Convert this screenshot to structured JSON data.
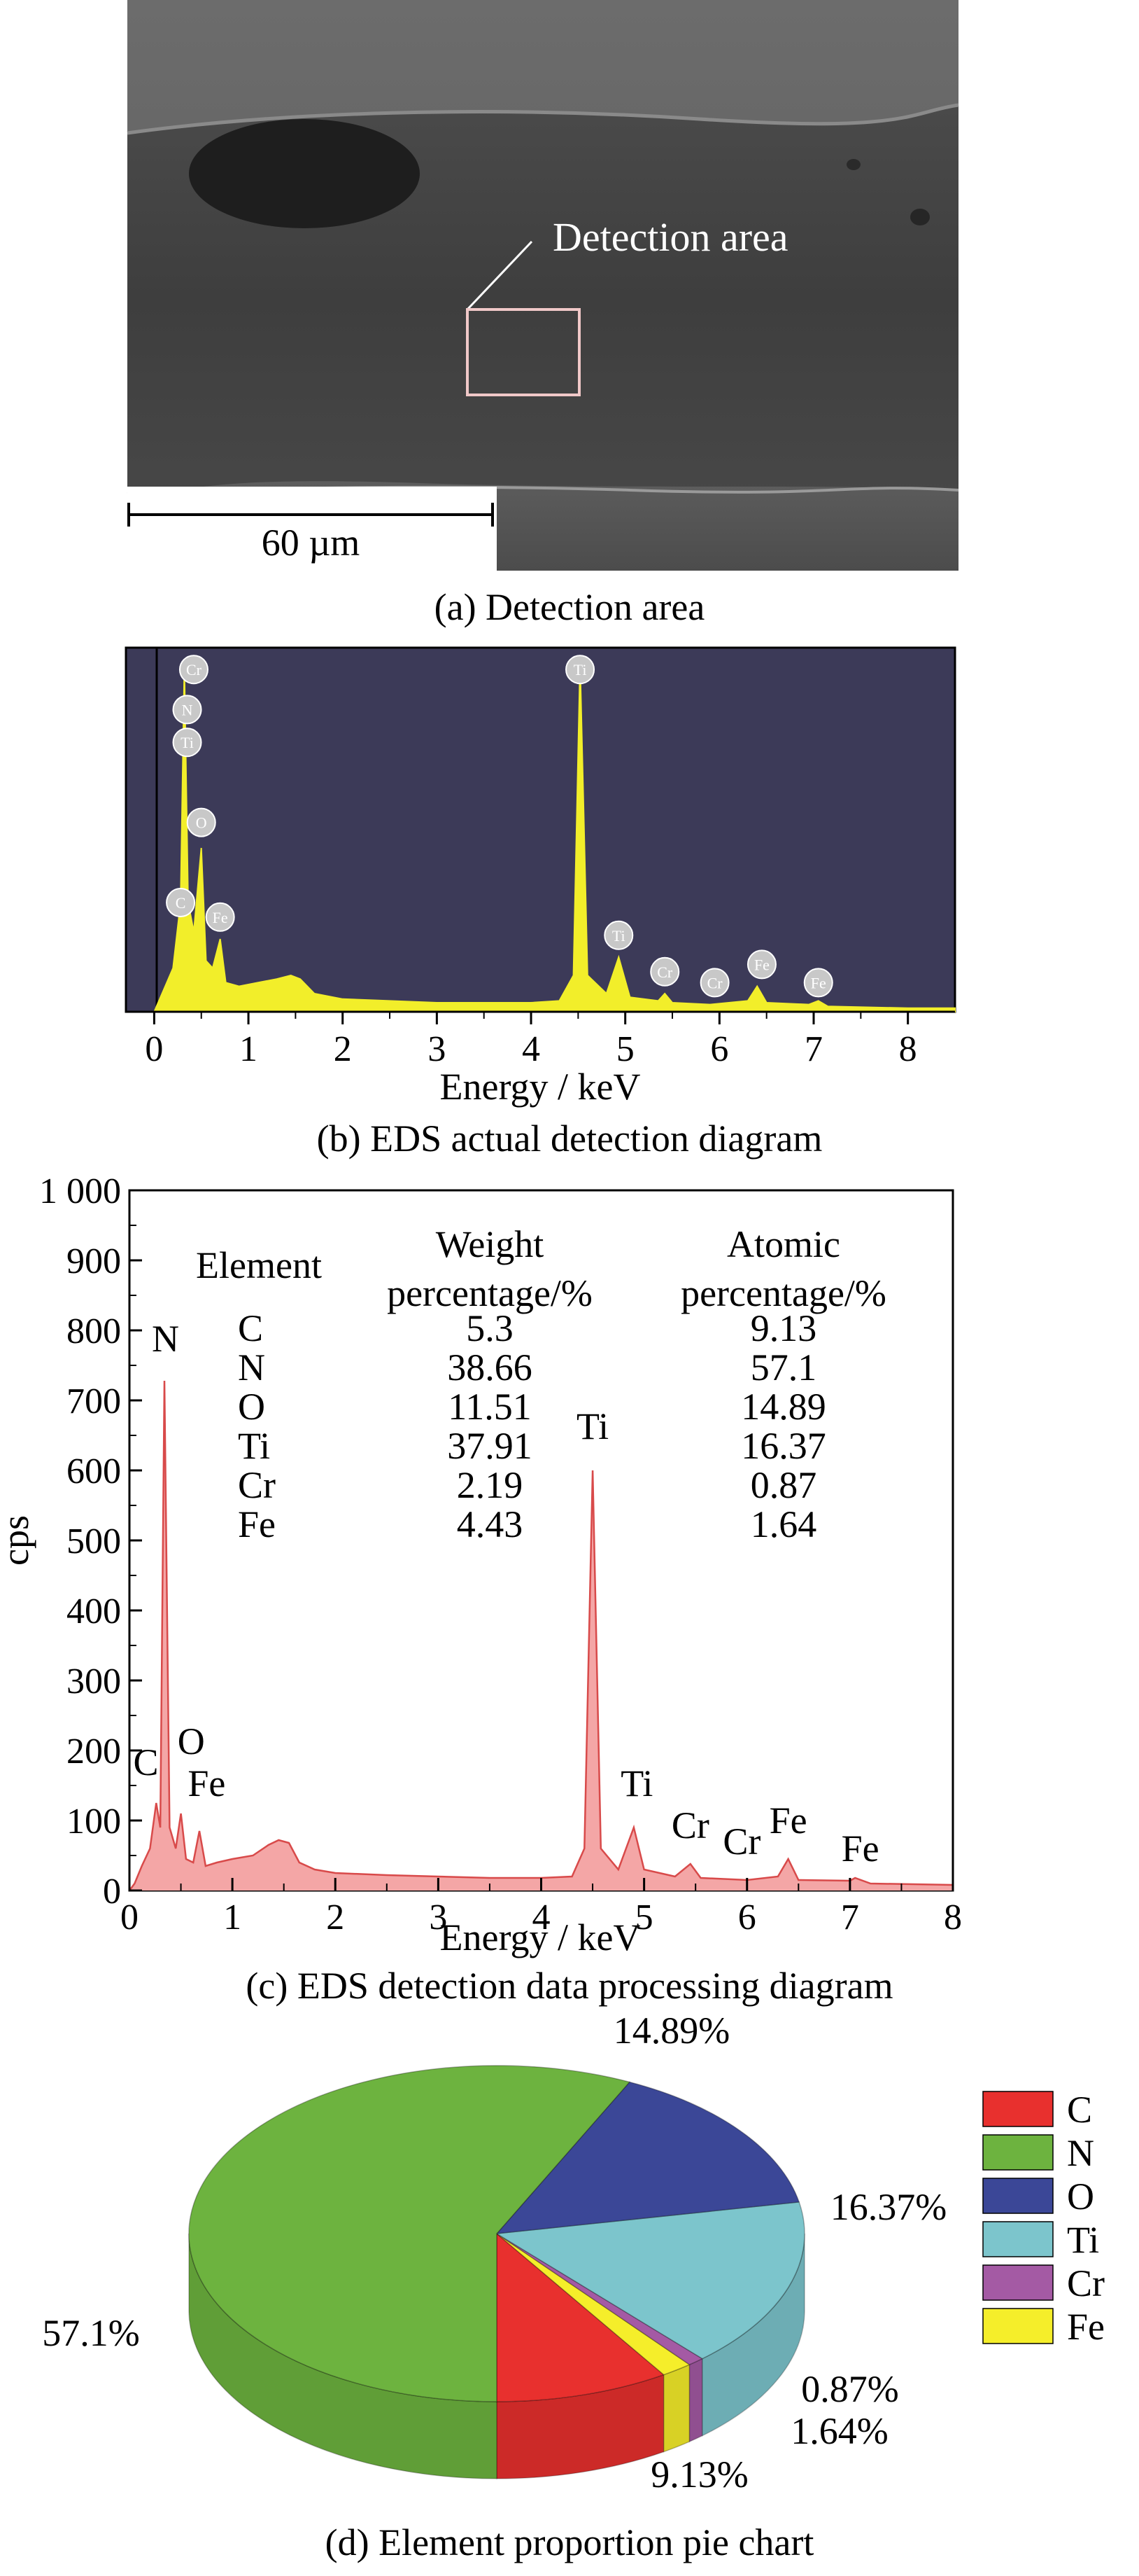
{
  "panel_a": {
    "callout": "Detection area",
    "scale_bar": "60 µm",
    "caption": "(a) Detection area"
  },
  "chart_data": [
    {
      "type": "line",
      "panel": "b",
      "caption": "(b) EDS actual detection diagram",
      "xlabel": "Energy / keV",
      "xlim": [
        -0.3,
        8.5
      ],
      "xticks": [
        "0",
        "1",
        "2",
        "3",
        "4",
        "5",
        "6",
        "7",
        "8"
      ],
      "ylim": [
        0,
        1
      ],
      "grid": false,
      "colors": {
        "background": "#3c3a58",
        "trace": "#f2ee2a",
        "marker_fill": "#c8c8c8"
      },
      "spectrum": [
        [
          -0.3,
          0.0
        ],
        [
          0.0,
          0.0
        ],
        [
          0.1,
          0.06
        ],
        [
          0.2,
          0.12
        ],
        [
          0.28,
          0.3
        ],
        [
          0.32,
          0.95
        ],
        [
          0.36,
          0.3
        ],
        [
          0.42,
          0.22
        ],
        [
          0.5,
          0.45
        ],
        [
          0.55,
          0.14
        ],
        [
          0.62,
          0.12
        ],
        [
          0.7,
          0.2
        ],
        [
          0.76,
          0.08
        ],
        [
          0.9,
          0.07
        ],
        [
          1.1,
          0.08
        ],
        [
          1.3,
          0.09
        ],
        [
          1.45,
          0.1
        ],
        [
          1.55,
          0.09
        ],
        [
          1.7,
          0.05
        ],
        [
          2.0,
          0.035
        ],
        [
          2.5,
          0.03
        ],
        [
          3.0,
          0.025
        ],
        [
          3.5,
          0.025
        ],
        [
          4.0,
          0.025
        ],
        [
          4.3,
          0.03
        ],
        [
          4.45,
          0.1
        ],
        [
          4.52,
          0.96
        ],
        [
          4.6,
          0.1
        ],
        [
          4.8,
          0.05
        ],
        [
          4.93,
          0.15
        ],
        [
          5.05,
          0.04
        ],
        [
          5.35,
          0.03
        ],
        [
          5.42,
          0.05
        ],
        [
          5.5,
          0.025
        ],
        [
          5.9,
          0.02
        ],
        [
          6.3,
          0.03
        ],
        [
          6.4,
          0.07
        ],
        [
          6.5,
          0.025
        ],
        [
          6.95,
          0.02
        ],
        [
          7.05,
          0.03
        ],
        [
          7.15,
          0.015
        ],
        [
          8.0,
          0.01
        ],
        [
          8.5,
          0.01
        ]
      ],
      "peak_markers": [
        {
          "label": "Cr",
          "x": 0.42,
          "y": 0.94
        },
        {
          "label": "N",
          "x": 0.35,
          "y": 0.83
        },
        {
          "label": "Ti",
          "x": 0.35,
          "y": 0.74
        },
        {
          "label": "O",
          "x": 0.5,
          "y": 0.52
        },
        {
          "label": "C",
          "x": 0.28,
          "y": 0.3
        },
        {
          "label": "Fe",
          "x": 0.7,
          "y": 0.26
        },
        {
          "label": "Ti",
          "x": 4.52,
          "y": 0.94
        },
        {
          "label": "Ti",
          "x": 4.93,
          "y": 0.21
        },
        {
          "label": "Cr",
          "x": 5.42,
          "y": 0.11
        },
        {
          "label": "Cr",
          "x": 5.95,
          "y": 0.08
        },
        {
          "label": "Fe",
          "x": 6.45,
          "y": 0.13
        },
        {
          "label": "Fe",
          "x": 7.05,
          "y": 0.08
        }
      ]
    },
    {
      "type": "area",
      "panel": "c",
      "caption": "(c) EDS detection data processing diagram",
      "xlabel": "Energy / keV",
      "ylabel": "cps",
      "xlim": [
        0,
        8
      ],
      "ylim": [
        0,
        1000
      ],
      "xticks": [
        "0",
        "1",
        "2",
        "3",
        "4",
        "5",
        "6",
        "7",
        "8"
      ],
      "yticks": [
        "0",
        "100",
        "200",
        "300",
        "400",
        "500",
        "600",
        "700",
        "800",
        "900",
        "1 000"
      ],
      "grid": false,
      "colors": {
        "fill": "#f4a6a6",
        "line": "#d84a4a"
      },
      "spectrum": [
        [
          0.0,
          0
        ],
        [
          0.05,
          10
        ],
        [
          0.12,
          35
        ],
        [
          0.2,
          60
        ],
        [
          0.26,
          125
        ],
        [
          0.3,
          90
        ],
        [
          0.34,
          728
        ],
        [
          0.39,
          90
        ],
        [
          0.45,
          60
        ],
        [
          0.5,
          110
        ],
        [
          0.55,
          45
        ],
        [
          0.62,
          40
        ],
        [
          0.68,
          85
        ],
        [
          0.74,
          35
        ],
        [
          0.85,
          40
        ],
        [
          1.0,
          45
        ],
        [
          1.2,
          50
        ],
        [
          1.35,
          65
        ],
        [
          1.45,
          72
        ],
        [
          1.55,
          68
        ],
        [
          1.65,
          40
        ],
        [
          1.8,
          30
        ],
        [
          2.0,
          25
        ],
        [
          2.5,
          22
        ],
        [
          3.0,
          20
        ],
        [
          3.5,
          18
        ],
        [
          4.0,
          18
        ],
        [
          4.3,
          20
        ],
        [
          4.42,
          60
        ],
        [
          4.5,
          600
        ],
        [
          4.58,
          60
        ],
        [
          4.75,
          30
        ],
        [
          4.9,
          90
        ],
        [
          5.0,
          30
        ],
        [
          5.3,
          20
        ],
        [
          5.45,
          38
        ],
        [
          5.55,
          18
        ],
        [
          6.0,
          15
        ],
        [
          6.3,
          20
        ],
        [
          6.4,
          45
        ],
        [
          6.5,
          15
        ],
        [
          7.0,
          14
        ],
        [
          7.05,
          18
        ],
        [
          7.2,
          10
        ],
        [
          8.0,
          8
        ]
      ],
      "peak_labels": [
        {
          "label": "N",
          "x": 0.35,
          "y": 770
        },
        {
          "label": "C",
          "x": 0.16,
          "y": 165
        },
        {
          "label": "O",
          "x": 0.6,
          "y": 195
        },
        {
          "label": "Fe",
          "x": 0.75,
          "y": 135
        },
        {
          "label": "Ti",
          "x": 4.5,
          "y": 645
        },
        {
          "label": "Ti",
          "x": 4.93,
          "y": 135
        },
        {
          "label": "Cr",
          "x": 5.45,
          "y": 75
        },
        {
          "label": "Cr",
          "x": 5.95,
          "y": 52
        },
        {
          "label": "Fe",
          "x": 6.4,
          "y": 82
        },
        {
          "label": "Fe",
          "x": 7.1,
          "y": 42
        }
      ],
      "table": {
        "headers": [
          [
            "Element"
          ],
          [
            "Weight",
            "percentage/%"
          ],
          [
            "Atomic",
            "percentage/%"
          ]
        ],
        "rows": [
          [
            "C",
            "5.3",
            "9.13"
          ],
          [
            "N",
            "38.66",
            "57.1"
          ],
          [
            "O",
            "11.51",
            "14.89"
          ],
          [
            "Ti",
            "37.91",
            "16.37"
          ],
          [
            "Cr",
            "2.19",
            "0.87"
          ],
          [
            "Fe",
            "4.43",
            "1.64"
          ]
        ]
      }
    },
    {
      "type": "pie",
      "panel": "d",
      "caption": "(d) Element proportion pie chart",
      "legend_placement": "right",
      "slices": [
        {
          "label": "C",
          "value": 9.13,
          "value_label": "9.13%",
          "color": "#e8302e"
        },
        {
          "label": "Fe",
          "value": 1.64,
          "value_label": "1.64%",
          "color": "#f5ee2a"
        },
        {
          "label": "Cr",
          "value": 0.87,
          "value_label": "0.87%",
          "color": "#a45aa4"
        },
        {
          "label": "Ti",
          "value": 16.37,
          "value_label": "16.37%",
          "color": "#7cc5cc"
        },
        {
          "label": "O",
          "value": 14.89,
          "value_label": "14.89%",
          "color": "#3b4797"
        },
        {
          "label": "N",
          "value": 57.1,
          "value_label": "57.1%",
          "color": "#6db33f"
        }
      ],
      "legend": [
        {
          "label": "C",
          "color": "#e8302e"
        },
        {
          "label": "N",
          "color": "#6db33f"
        },
        {
          "label": "O",
          "color": "#3b4797"
        },
        {
          "label": "Ti",
          "color": "#7cc5cc"
        },
        {
          "label": "Cr",
          "color": "#a45aa4"
        },
        {
          "label": "Fe",
          "color": "#f5ee2a"
        }
      ]
    }
  ]
}
